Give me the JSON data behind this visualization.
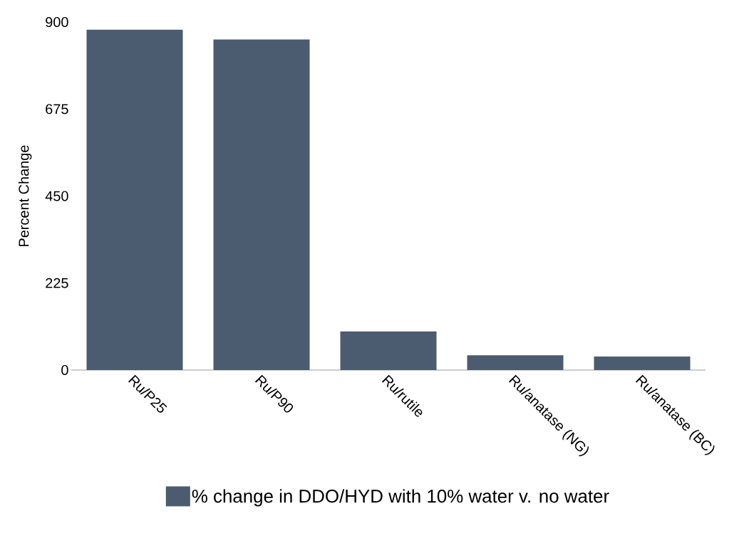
{
  "chart_data": {
    "type": "bar",
    "ylabel": "Percent Change",
    "categories": [
      "Ru/P25",
      "Ru/P90",
      "Ru/rutile",
      "Ru/anatase (NG)",
      "Ru/anatase (BC)"
    ],
    "series": [
      {
        "name": "% change in DDO/HYD with 10% water v. no water",
        "color": "#4b5b70",
        "values": [
          880,
          855,
          100,
          38,
          35
        ]
      }
    ],
    "ylim": [
      0,
      900
    ],
    "yticks": [
      0,
      225,
      450,
      675,
      900
    ],
    "grid": false,
    "legend": "bottom"
  }
}
